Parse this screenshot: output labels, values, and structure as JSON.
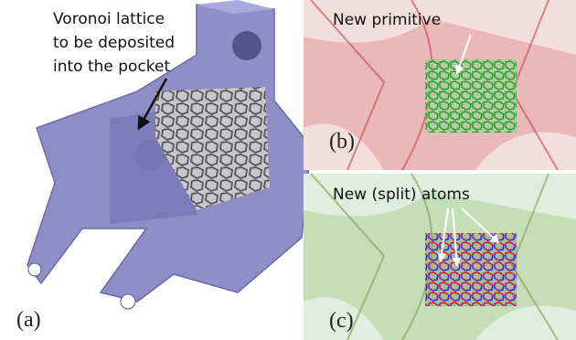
{
  "panels": [
    {
      "label": "(a)",
      "annotation": [
        "Voronoi lattice",
        "to be deposited",
        "into the pocket"
      ]
    },
    {
      "label": "(b)",
      "annotation": [
        "New primitive"
      ]
    },
    {
      "label": "(c)",
      "annotation": [
        "New (split) atoms"
      ]
    }
  ]
}
